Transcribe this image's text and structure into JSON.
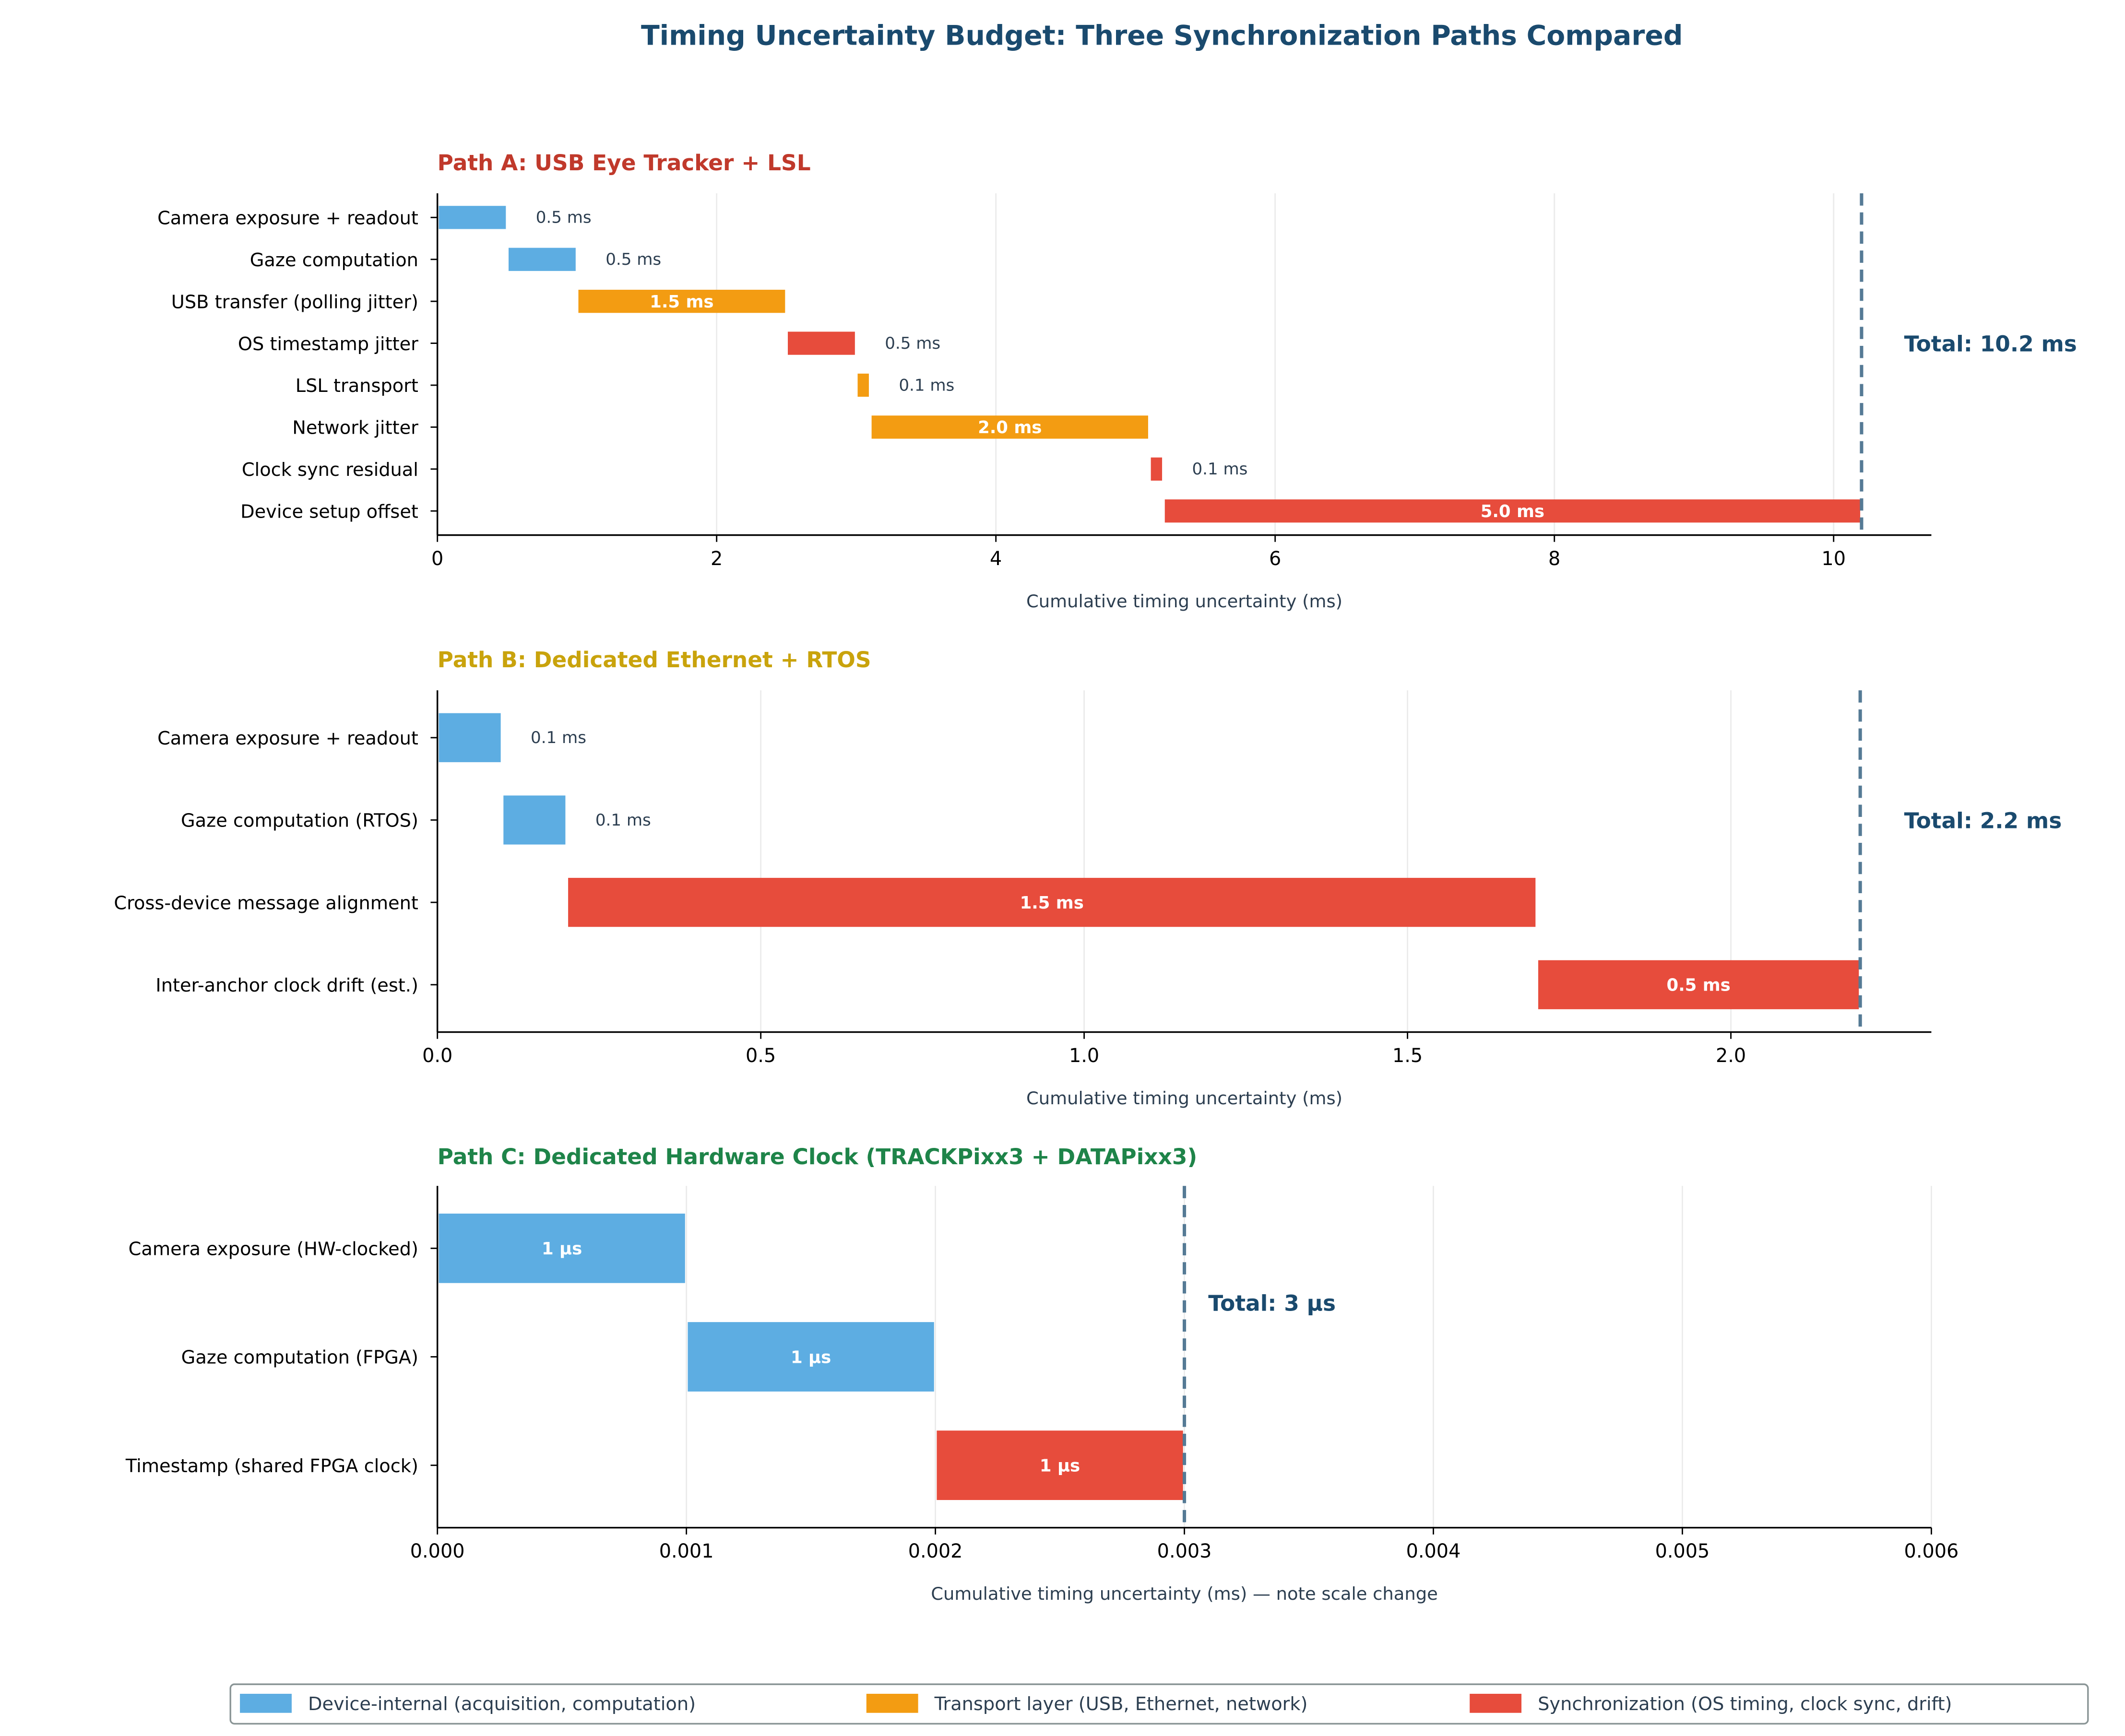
{
  "title": "Timing Uncertainty Budget: Three Synchronization Paths Compared",
  "colors": {
    "title": "#1a4a6e",
    "device": "#5dade2",
    "transport": "#f39c12",
    "sync": "#e74c3c",
    "total_line": "#557a95",
    "text": "#2c3e50"
  },
  "legend": {
    "placement": "bottom-center",
    "items": [
      {
        "key": "device",
        "label": "Device-internal (acquisition, computation)"
      },
      {
        "key": "transport",
        "label": "Transport layer (USB, Ethernet, network)"
      },
      {
        "key": "sync",
        "label": "Synchronization (OS timing, clock sync, drift)"
      }
    ]
  },
  "chart_data": [
    {
      "type": "bar",
      "orientation": "horizontal-waterfall",
      "title": "Path A: USB Eye Tracker + LSL",
      "title_color": "#c0392b",
      "xlabel": "Cumulative timing uncertainty (ms)",
      "xlim": [
        0,
        10.7
      ],
      "xticks": [
        0,
        2,
        4,
        6,
        8,
        10
      ],
      "xtick_labels": [
        "0",
        "2",
        "4",
        "6",
        "8",
        "10"
      ],
      "grid": "x",
      "total": 10.2,
      "total_label": "Total: 10.2 ms",
      "bars": [
        {
          "label": "Camera exposure + readout",
          "start": 0,
          "value": 0.5,
          "category": "device",
          "value_label": "0.5 ms"
        },
        {
          "label": "Gaze computation",
          "start": 0.5,
          "value": 0.5,
          "category": "device",
          "value_label": "0.5 ms"
        },
        {
          "label": "USB transfer (polling jitter)",
          "start": 1.0,
          "value": 1.5,
          "category": "transport",
          "value_label": "1.5 ms"
        },
        {
          "label": "OS timestamp jitter",
          "start": 2.5,
          "value": 0.5,
          "category": "sync",
          "value_label": "0.5 ms"
        },
        {
          "label": "LSL transport",
          "start": 3.0,
          "value": 0.1,
          "category": "transport",
          "value_label": "0.1 ms"
        },
        {
          "label": "Network jitter",
          "start": 3.1,
          "value": 2.0,
          "category": "transport",
          "value_label": "2.0 ms"
        },
        {
          "label": "Clock sync residual",
          "start": 5.1,
          "value": 0.1,
          "category": "sync",
          "value_label": "0.1 ms"
        },
        {
          "label": "Device setup offset",
          "start": 5.2,
          "value": 5.0,
          "category": "sync",
          "value_label": "5.0 ms"
        }
      ]
    },
    {
      "type": "bar",
      "orientation": "horizontal-waterfall",
      "title": "Path B: Dedicated Ethernet + RTOS",
      "title_color": "#c9a30c",
      "xlabel": "Cumulative timing uncertainty (ms)",
      "xlim": [
        0,
        2.31
      ],
      "xticks": [
        0,
        0.5,
        1.0,
        1.5,
        2.0
      ],
      "xtick_labels": [
        "0.0",
        "0.5",
        "1.0",
        "1.5",
        "2.0"
      ],
      "grid": "x",
      "total": 2.2,
      "total_label": "Total: 2.2 ms",
      "bars": [
        {
          "label": "Camera exposure + readout",
          "start": 0,
          "value": 0.1,
          "category": "device",
          "value_label": "0.1 ms"
        },
        {
          "label": "Gaze computation (RTOS)",
          "start": 0.1,
          "value": 0.1,
          "category": "device",
          "value_label": "0.1 ms"
        },
        {
          "label": "Cross-device message alignment",
          "start": 0.2,
          "value": 1.5,
          "category": "sync",
          "value_label": "1.5 ms"
        },
        {
          "label": "Inter-anchor clock drift (est.)",
          "start": 1.7,
          "value": 0.5,
          "category": "sync",
          "value_label": "0.5 ms"
        }
      ]
    },
    {
      "type": "bar",
      "orientation": "horizontal-waterfall",
      "title": "Path C: Dedicated Hardware Clock (TRACKPixx3 + DATAPixx3)",
      "title_color": "#1e8449",
      "xlabel": "Cumulative timing uncertainty (ms) — note scale change",
      "xlim": [
        0,
        0.006
      ],
      "xticks": [
        0,
        0.001,
        0.002,
        0.003,
        0.004,
        0.005,
        0.006
      ],
      "xtick_labels": [
        "0.000",
        "0.001",
        "0.002",
        "0.003",
        "0.004",
        "0.005",
        "0.006"
      ],
      "grid": "x",
      "total": 0.003,
      "total_label": "Total: 3 µs",
      "bars": [
        {
          "label": "Camera exposure (HW-clocked)",
          "start": 0,
          "value": 0.001,
          "category": "device",
          "value_label": "1 µs"
        },
        {
          "label": "Gaze computation (FPGA)",
          "start": 0.001,
          "value": 0.001,
          "category": "device",
          "value_label": "1 µs"
        },
        {
          "label": "Timestamp (shared FPGA clock)",
          "start": 0.002,
          "value": 0.001,
          "category": "sync",
          "value_label": "1 µs"
        }
      ]
    }
  ]
}
